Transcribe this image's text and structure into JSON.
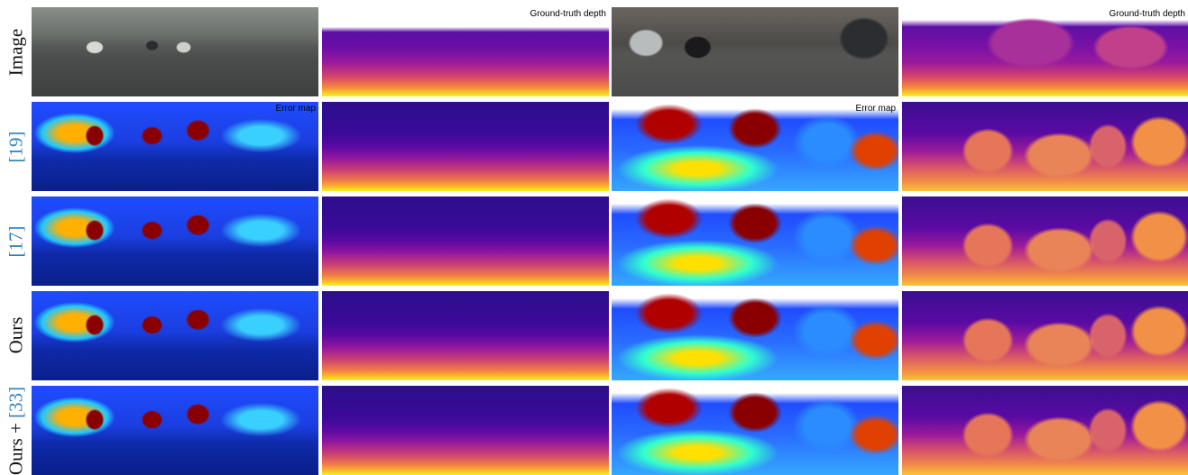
{
  "rows": [
    {
      "label": "Image",
      "caption": "Ground-truth depth"
    },
    {
      "cite": "[19]",
      "caption": "Error map"
    },
    {
      "cite": "[17]"
    },
    {
      "label": "Ours"
    },
    {
      "label": "Ours +",
      "cite": "[33]"
    }
  ]
}
